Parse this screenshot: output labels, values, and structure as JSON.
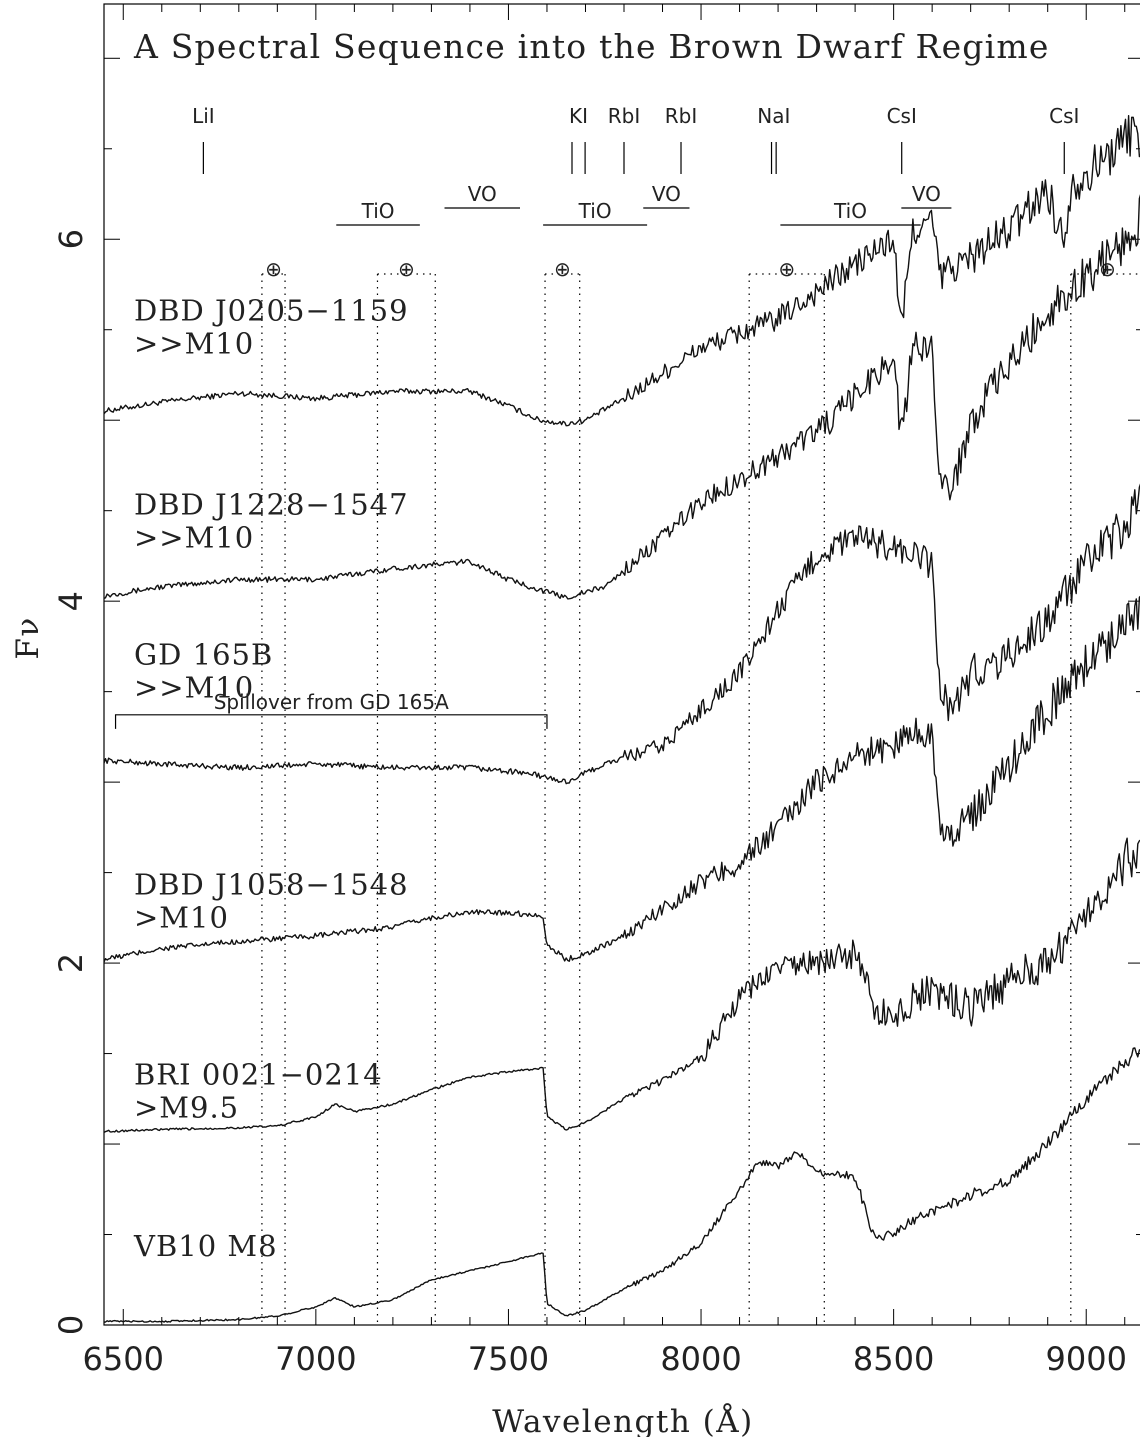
{
  "chart_data": {
    "type": "line",
    "title": "A Spectral Sequence into the Brown Dwarf Regime",
    "xlabel": "Wavelength  (Å)",
    "ylabel": "Fν",
    "xlim": [
      6450,
      9150
    ],
    "ylim": [
      0,
      7.3
    ],
    "x_ticks": [
      6500,
      7000,
      7500,
      8000,
      8500,
      9000
    ],
    "x_tick_labels": [
      "6500",
      "7000",
      "7500",
      "8000",
      "8500",
      "9000"
    ],
    "y_ticks": [
      0,
      2,
      4,
      6
    ],
    "y_tick_labels": [
      "0",
      "2",
      "4",
      "6"
    ],
    "spectral_features": [
      {
        "label": "LiI",
        "wavelengths": [
          6708
        ]
      },
      {
        "label": "KI",
        "wavelengths": [
          7665,
          7699
        ]
      },
      {
        "label": "RbI",
        "wavelengths": [
          7800
        ]
      },
      {
        "label": "RbI",
        "wavelengths": [
          7948
        ]
      },
      {
        "label": "NaI",
        "wavelengths": [
          8183,
          8195
        ]
      },
      {
        "label": "CsI",
        "wavelengths": [
          8521
        ]
      },
      {
        "label": "CsI",
        "wavelengths": [
          8943
        ]
      }
    ],
    "molecular_bands": [
      {
        "label": "TiO",
        "start": 7053,
        "end": 7270
      },
      {
        "label": "VO",
        "start": 7334,
        "end": 7530
      },
      {
        "label": "TiO",
        "start": 7590,
        "end": 7860
      },
      {
        "label": "VO",
        "start": 7850,
        "end": 7970
      },
      {
        "label": "TiO",
        "start": 8206,
        "end": 8570
      },
      {
        "label": "VO",
        "start": 8520,
        "end": 8650
      }
    ],
    "telluric_bands": [
      {
        "symbol": "⊕",
        "start": 6860,
        "end": 6920
      },
      {
        "symbol": "⊕",
        "start": 7160,
        "end": 7310
      },
      {
        "symbol": "⊕",
        "start": 7595,
        "end": 7685
      },
      {
        "symbol": "⊕",
        "start": 8125,
        "end": 8320
      },
      {
        "symbol": "⊕",
        "start": 8960,
        "end": 9150
      }
    ],
    "annotation": {
      "text": "Spillover from GD 165A",
      "start": 6480,
      "end": 7600,
      "level": 3.3
    },
    "series": [
      {
        "name": "DBD J0205−1159",
        "spectral_type": ">>M10",
        "label_level": 5.55,
        "points": [
          [
            6450,
            5.05
          ],
          [
            6600,
            5.1
          ],
          [
            6800,
            5.15
          ],
          [
            7000,
            5.12
          ],
          [
            7200,
            5.16
          ],
          [
            7400,
            5.16
          ],
          [
            7500,
            5.08
          ],
          [
            7580,
            5.0
          ],
          [
            7650,
            4.98
          ],
          [
            7700,
            5.0
          ],
          [
            7800,
            5.12
          ],
          [
            8000,
            5.4
          ],
          [
            8200,
            5.56
          ],
          [
            8400,
            5.86
          ],
          [
            8500,
            6.0
          ],
          [
            8520,
            5.5
          ],
          [
            8550,
            6.05
          ],
          [
            8600,
            6.1
          ],
          [
            8620,
            5.8
          ],
          [
            8700,
            5.9
          ],
          [
            8800,
            6.05
          ],
          [
            8900,
            6.28
          ],
          [
            8940,
            5.98
          ],
          [
            8960,
            6.3
          ],
          [
            9050,
            6.45
          ],
          [
            9120,
            6.6
          ],
          [
            9150,
            6.55
          ]
        ]
      },
      {
        "name": "DBD J1228−1547",
        "spectral_type": ">>M10",
        "label_level": 4.48,
        "points": [
          [
            6450,
            4.03
          ],
          [
            6600,
            4.08
          ],
          [
            6800,
            4.12
          ],
          [
            7000,
            4.12
          ],
          [
            7200,
            4.18
          ],
          [
            7400,
            4.22
          ],
          [
            7500,
            4.12
          ],
          [
            7600,
            4.05
          ],
          [
            7650,
            4.02
          ],
          [
            7750,
            4.08
          ],
          [
            7900,
            4.35
          ],
          [
            8000,
            4.55
          ],
          [
            8200,
            4.8
          ],
          [
            8350,
            5.02
          ],
          [
            8450,
            5.25
          ],
          [
            8500,
            5.35
          ],
          [
            8520,
            4.9
          ],
          [
            8550,
            5.4
          ],
          [
            8600,
            5.4
          ],
          [
            8620,
            4.7
          ],
          [
            8650,
            4.6
          ],
          [
            8700,
            5.0
          ],
          [
            8800,
            5.3
          ],
          [
            8900,
            5.6
          ],
          [
            9000,
            5.8
          ],
          [
            9100,
            6.0
          ],
          [
            9150,
            6.15
          ]
        ]
      },
      {
        "name": "GD 165B",
        "spectral_type": ">>M10",
        "label_level": 3.65,
        "points": [
          [
            6450,
            3.12
          ],
          [
            6600,
            3.1
          ],
          [
            6800,
            3.08
          ],
          [
            7000,
            3.1
          ],
          [
            7200,
            3.08
          ],
          [
            7400,
            3.08
          ],
          [
            7550,
            3.05
          ],
          [
            7650,
            3.0
          ],
          [
            7750,
            3.1
          ],
          [
            7900,
            3.2
          ],
          [
            8000,
            3.4
          ],
          [
            8100,
            3.6
          ],
          [
            8200,
            3.95
          ],
          [
            8300,
            4.25
          ],
          [
            8400,
            4.35
          ],
          [
            8500,
            4.3
          ],
          [
            8600,
            4.2
          ],
          [
            8620,
            3.5
          ],
          [
            8650,
            3.4
          ],
          [
            8700,
            3.6
          ],
          [
            8800,
            3.7
          ],
          [
            8900,
            3.9
          ],
          [
            9000,
            4.2
          ],
          [
            9100,
            4.4
          ],
          [
            9150,
            4.6
          ]
        ]
      },
      {
        "name": "DBD J1058−1548",
        "spectral_type": ">M10",
        "label_level": 2.38,
        "points": [
          [
            6450,
            2.02
          ],
          [
            6600,
            2.08
          ],
          [
            6800,
            2.12
          ],
          [
            7000,
            2.15
          ],
          [
            7200,
            2.2
          ],
          [
            7300,
            2.25
          ],
          [
            7400,
            2.28
          ],
          [
            7500,
            2.28
          ],
          [
            7590,
            2.26
          ],
          [
            7600,
            2.1
          ],
          [
            7650,
            2.02
          ],
          [
            7700,
            2.05
          ],
          [
            7800,
            2.15
          ],
          [
            8000,
            2.45
          ],
          [
            8100,
            2.55
          ],
          [
            8200,
            2.75
          ],
          [
            8300,
            3.0
          ],
          [
            8400,
            3.15
          ],
          [
            8500,
            3.2
          ],
          [
            8560,
            3.3
          ],
          [
            8600,
            3.25
          ],
          [
            8620,
            2.8
          ],
          [
            8650,
            2.7
          ],
          [
            8700,
            2.8
          ],
          [
            8800,
            3.1
          ],
          [
            8900,
            3.4
          ],
          [
            9000,
            3.65
          ],
          [
            9100,
            3.9
          ],
          [
            9150,
            4.0
          ]
        ]
      },
      {
        "name": "BRI 0021−0214",
        "spectral_type": ">M9.5",
        "label_level": 1.33,
        "points": [
          [
            6450,
            1.07
          ],
          [
            6600,
            1.08
          ],
          [
            6800,
            1.09
          ],
          [
            6900,
            1.1
          ],
          [
            7000,
            1.15
          ],
          [
            7050,
            1.22
          ],
          [
            7100,
            1.18
          ],
          [
            7200,
            1.22
          ],
          [
            7300,
            1.3
          ],
          [
            7400,
            1.37
          ],
          [
            7500,
            1.4
          ],
          [
            7590,
            1.42
          ],
          [
            7600,
            1.15
          ],
          [
            7650,
            1.08
          ],
          [
            7700,
            1.12
          ],
          [
            7800,
            1.25
          ],
          [
            7900,
            1.35
          ],
          [
            8000,
            1.48
          ],
          [
            8100,
            1.8
          ],
          [
            8150,
            1.9
          ],
          [
            8200,
            1.98
          ],
          [
            8300,
            2.0
          ],
          [
            8400,
            2.05
          ],
          [
            8450,
            1.75
          ],
          [
            8500,
            1.7
          ],
          [
            8550,
            1.8
          ],
          [
            8600,
            1.85
          ],
          [
            8700,
            1.75
          ],
          [
            8800,
            1.9
          ],
          [
            8900,
            2.0
          ],
          [
            9000,
            2.3
          ],
          [
            9100,
            2.55
          ],
          [
            9150,
            2.7
          ]
        ]
      },
      {
        "name": "VB10",
        "spectral_type": "M8",
        "label_level": 0.38,
        "points": [
          [
            6450,
            0.02
          ],
          [
            6600,
            0.02
          ],
          [
            6800,
            0.03
          ],
          [
            6900,
            0.05
          ],
          [
            7000,
            0.1
          ],
          [
            7050,
            0.15
          ],
          [
            7100,
            0.1
          ],
          [
            7200,
            0.14
          ],
          [
            7300,
            0.25
          ],
          [
            7400,
            0.3
          ],
          [
            7500,
            0.35
          ],
          [
            7590,
            0.4
          ],
          [
            7600,
            0.12
          ],
          [
            7650,
            0.05
          ],
          [
            7700,
            0.08
          ],
          [
            7800,
            0.2
          ],
          [
            7900,
            0.3
          ],
          [
            8000,
            0.45
          ],
          [
            8100,
            0.75
          ],
          [
            8150,
            0.9
          ],
          [
            8200,
            0.88
          ],
          [
            8250,
            0.95
          ],
          [
            8300,
            0.85
          ],
          [
            8400,
            0.82
          ],
          [
            8450,
            0.48
          ],
          [
            8500,
            0.5
          ],
          [
            8550,
            0.58
          ],
          [
            8600,
            0.62
          ],
          [
            8700,
            0.72
          ],
          [
            8800,
            0.8
          ],
          [
            8900,
            1.0
          ],
          [
            9000,
            1.25
          ],
          [
            9100,
            1.45
          ],
          [
            9150,
            1.55
          ]
        ]
      }
    ]
  }
}
